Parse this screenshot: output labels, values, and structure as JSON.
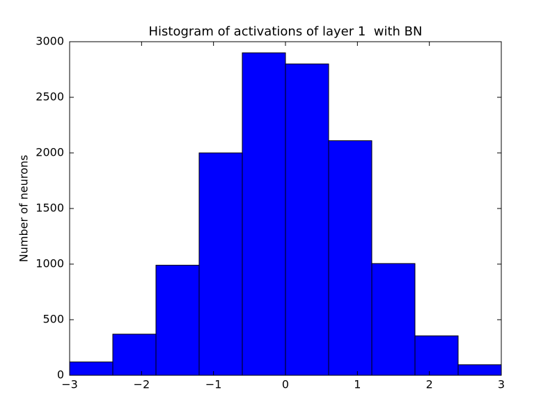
{
  "chart_data": {
    "type": "histogram",
    "title": "Histogram of activations of layer 1  with BN",
    "ylabel": "Number of neurons",
    "bins": [
      -3,
      -2.4,
      -1.8,
      -1.2,
      -0.6,
      0,
      0.6,
      1.2,
      1.8,
      2.4,
      3
    ],
    "values": [
      120,
      370,
      990,
      2000,
      2900,
      2800,
      2110,
      1005,
      355,
      95
    ],
    "color": "#0000ff",
    "xlim": [
      -3,
      3
    ],
    "xticks": [
      {
        "value": -3,
        "label": "−3"
      },
      {
        "value": -2,
        "label": "−2"
      },
      {
        "value": -1,
        "label": "−1"
      },
      0,
      1,
      2,
      3
    ],
    "ylim": [
      0,
      3000
    ],
    "yticks": [
      0,
      500,
      1000,
      1500,
      2000,
      2500,
      3000
    ],
    "grid": false
  }
}
